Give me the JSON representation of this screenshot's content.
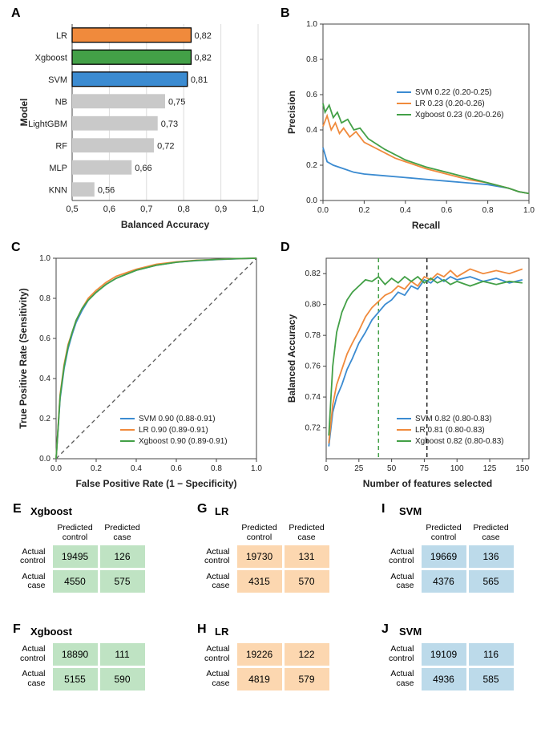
{
  "colors": {
    "svm": "#3b8bd1",
    "lr": "#f08a3c",
    "xgb": "#43a047",
    "grey_bar": "#c9c9c9",
    "grid": "#dcdcdc",
    "axis": "#444444",
    "text": "#222222",
    "cm_green": "#bfe3c3",
    "cm_orange": "#fcd7b0",
    "cm_blue": "#bcdaea"
  },
  "panelA": {
    "label": "A",
    "ylabel": "Model",
    "xlabel": "Balanced Accuracy",
    "xmin": 0.5,
    "xmax": 1.0,
    "xtick_step": 0.1,
    "bars": [
      {
        "name": "LR",
        "value": 0.82,
        "color": "#f08a3c",
        "stroke": true,
        "value_label": "0,82"
      },
      {
        "name": "Xgboost",
        "value": 0.82,
        "color": "#43a047",
        "stroke": true,
        "value_label": "0,82"
      },
      {
        "name": "SVM",
        "value": 0.81,
        "color": "#3b8bd1",
        "stroke": true,
        "value_label": "0,81"
      },
      {
        "name": "NB",
        "value": 0.75,
        "color": "#c9c9c9",
        "stroke": false,
        "value_label": "0,75"
      },
      {
        "name": "LightGBM",
        "value": 0.73,
        "color": "#c9c9c9",
        "stroke": false,
        "value_label": "0,73"
      },
      {
        "name": "RF",
        "value": 0.72,
        "color": "#c9c9c9",
        "stroke": false,
        "value_label": "0,72"
      },
      {
        "name": "MLP",
        "value": 0.66,
        "color": "#c9c9c9",
        "stroke": false,
        "value_label": "0,66"
      },
      {
        "name": "KNN",
        "value": 0.56,
        "color": "#c9c9c9",
        "stroke": false,
        "value_label": "0,56"
      }
    ]
  },
  "panelB": {
    "label": "B",
    "xlabel": "Recall",
    "ylabel": "Precision",
    "xlim": [
      0,
      1
    ],
    "ylim": [
      0,
      1
    ],
    "xticks": [
      0.0,
      0.2,
      0.4,
      0.6,
      0.8,
      1.0
    ],
    "yticks": [
      0.0,
      0.2,
      0.4,
      0.6,
      0.8,
      1.0
    ],
    "legend": [
      {
        "label": "SVM 0.22 (0.20-0.25)",
        "color": "#3b8bd1"
      },
      {
        "label": "LR 0.23 (0.20-0.26)",
        "color": "#f08a3c"
      },
      {
        "label": "Xgboost 0.23 (0.20-0.26)",
        "color": "#43a047"
      }
    ],
    "series": {
      "svm": [
        [
          0.0,
          0.3
        ],
        [
          0.02,
          0.22
        ],
        [
          0.05,
          0.2
        ],
        [
          0.1,
          0.18
        ],
        [
          0.15,
          0.16
        ],
        [
          0.2,
          0.15
        ],
        [
          0.3,
          0.14
        ],
        [
          0.4,
          0.13
        ],
        [
          0.5,
          0.12
        ],
        [
          0.6,
          0.11
        ],
        [
          0.7,
          0.1
        ],
        [
          0.8,
          0.09
        ],
        [
          0.9,
          0.07
        ],
        [
          0.95,
          0.05
        ],
        [
          1.0,
          0.04
        ]
      ],
      "lr": [
        [
          0.0,
          0.42
        ],
        [
          0.02,
          0.48
        ],
        [
          0.04,
          0.4
        ],
        [
          0.06,
          0.44
        ],
        [
          0.08,
          0.38
        ],
        [
          0.1,
          0.41
        ],
        [
          0.13,
          0.36
        ],
        [
          0.16,
          0.39
        ],
        [
          0.2,
          0.33
        ],
        [
          0.25,
          0.3
        ],
        [
          0.3,
          0.27
        ],
        [
          0.35,
          0.24
        ],
        [
          0.4,
          0.22
        ],
        [
          0.5,
          0.18
        ],
        [
          0.6,
          0.15
        ],
        [
          0.7,
          0.12
        ],
        [
          0.8,
          0.1
        ],
        [
          0.9,
          0.07
        ],
        [
          0.95,
          0.05
        ],
        [
          1.0,
          0.04
        ]
      ],
      "xgb": [
        [
          0.0,
          0.55
        ],
        [
          0.01,
          0.5
        ],
        [
          0.03,
          0.54
        ],
        [
          0.05,
          0.47
        ],
        [
          0.07,
          0.5
        ],
        [
          0.09,
          0.44
        ],
        [
          0.12,
          0.46
        ],
        [
          0.15,
          0.4
        ],
        [
          0.18,
          0.41
        ],
        [
          0.22,
          0.35
        ],
        [
          0.26,
          0.32
        ],
        [
          0.3,
          0.29
        ],
        [
          0.35,
          0.26
        ],
        [
          0.4,
          0.23
        ],
        [
          0.5,
          0.19
        ],
        [
          0.6,
          0.16
        ],
        [
          0.7,
          0.13
        ],
        [
          0.8,
          0.1
        ],
        [
          0.9,
          0.07
        ],
        [
          0.95,
          0.05
        ],
        [
          1.0,
          0.04
        ]
      ]
    }
  },
  "panelC": {
    "label": "C",
    "xlabel": "False Positive Rate (1 − Specificity)",
    "ylabel": "True Positive Rate (Sensitivity)",
    "xlim": [
      0,
      1
    ],
    "ylim": [
      0,
      1
    ],
    "xticks": [
      0.0,
      0.2,
      0.4,
      0.6,
      0.8,
      1.0
    ],
    "yticks": [
      0.0,
      0.2,
      0.4,
      0.6,
      0.8,
      1.0
    ],
    "legend": [
      {
        "label": "SVM 0.90 (0.88-0.91)",
        "color": "#3b8bd1"
      },
      {
        "label": "LR 0.90 (0.89-0.91)",
        "color": "#f08a3c"
      },
      {
        "label": "Xgboost 0.90 (0.89-0.91)",
        "color": "#43a047"
      }
    ],
    "series": {
      "svm": [
        [
          0,
          0
        ],
        [
          0.02,
          0.3
        ],
        [
          0.04,
          0.45
        ],
        [
          0.06,
          0.55
        ],
        [
          0.08,
          0.62
        ],
        [
          0.1,
          0.68
        ],
        [
          0.13,
          0.74
        ],
        [
          0.16,
          0.79
        ],
        [
          0.2,
          0.83
        ],
        [
          0.25,
          0.87
        ],
        [
          0.3,
          0.9
        ],
        [
          0.4,
          0.94
        ],
        [
          0.5,
          0.965
        ],
        [
          0.6,
          0.98
        ],
        [
          0.7,
          0.988
        ],
        [
          0.8,
          0.993
        ],
        [
          0.9,
          0.997
        ],
        [
          1.0,
          1.0
        ]
      ],
      "lr": [
        [
          0,
          0
        ],
        [
          0.02,
          0.32
        ],
        [
          0.04,
          0.47
        ],
        [
          0.06,
          0.57
        ],
        [
          0.08,
          0.63
        ],
        [
          0.1,
          0.69
        ],
        [
          0.13,
          0.75
        ],
        [
          0.16,
          0.8
        ],
        [
          0.2,
          0.84
        ],
        [
          0.25,
          0.88
        ],
        [
          0.3,
          0.91
        ],
        [
          0.4,
          0.945
        ],
        [
          0.5,
          0.97
        ],
        [
          0.6,
          0.982
        ],
        [
          0.7,
          0.99
        ],
        [
          0.8,
          0.994
        ],
        [
          0.9,
          0.998
        ],
        [
          1.0,
          1.0
        ]
      ],
      "xgb": [
        [
          0,
          0
        ],
        [
          0.02,
          0.31
        ],
        [
          0.04,
          0.46
        ],
        [
          0.06,
          0.56
        ],
        [
          0.08,
          0.63
        ],
        [
          0.1,
          0.69
        ],
        [
          0.13,
          0.75
        ],
        [
          0.16,
          0.79
        ],
        [
          0.2,
          0.83
        ],
        [
          0.25,
          0.87
        ],
        [
          0.3,
          0.9
        ],
        [
          0.4,
          0.94
        ],
        [
          0.5,
          0.965
        ],
        [
          0.6,
          0.98
        ],
        [
          0.7,
          0.989
        ],
        [
          0.8,
          0.994
        ],
        [
          0.9,
          0.998
        ],
        [
          1.0,
          1.0
        ]
      ]
    }
  },
  "panelD": {
    "label": "D",
    "xlabel": "Number of features selected",
    "ylabel": "Balanced Accuracy",
    "xlim": [
      0,
      155
    ],
    "ylim": [
      0.7,
      0.83
    ],
    "xticks": [
      0,
      25,
      50,
      75,
      100,
      125,
      150
    ],
    "yticks": [
      0.72,
      0.74,
      0.76,
      0.78,
      0.8,
      0.82
    ],
    "vlines": [
      {
        "x": 40,
        "color": "#43a047"
      },
      {
        "x": 77,
        "color": "#222222"
      }
    ],
    "legend": [
      {
        "label": "SVM 0.82 (0.80-0.83)",
        "color": "#3b8bd1"
      },
      {
        "label": "LR 0.81 (0.80-0.83)",
        "color": "#f08a3c"
      },
      {
        "label": "Xgboost 0.82 (0.80-0.83)",
        "color": "#43a047"
      }
    ],
    "series": {
      "svm": [
        [
          2,
          0.708
        ],
        [
          5,
          0.73
        ],
        [
          8,
          0.74
        ],
        [
          12,
          0.748
        ],
        [
          16,
          0.758
        ],
        [
          20,
          0.765
        ],
        [
          25,
          0.775
        ],
        [
          30,
          0.782
        ],
        [
          35,
          0.79
        ],
        [
          40,
          0.795
        ],
        [
          45,
          0.8
        ],
        [
          50,
          0.803
        ],
        [
          55,
          0.808
        ],
        [
          60,
          0.806
        ],
        [
          65,
          0.812
        ],
        [
          70,
          0.81
        ],
        [
          75,
          0.816
        ],
        [
          80,
          0.814
        ],
        [
          85,
          0.818
        ],
        [
          90,
          0.815
        ],
        [
          95,
          0.818
        ],
        [
          100,
          0.816
        ],
        [
          110,
          0.818
        ],
        [
          120,
          0.815
        ],
        [
          130,
          0.817
        ],
        [
          140,
          0.814
        ],
        [
          150,
          0.816
        ]
      ],
      "lr": [
        [
          2,
          0.71
        ],
        [
          5,
          0.735
        ],
        [
          8,
          0.748
        ],
        [
          12,
          0.758
        ],
        [
          16,
          0.768
        ],
        [
          20,
          0.775
        ],
        [
          25,
          0.783
        ],
        [
          30,
          0.792
        ],
        [
          35,
          0.798
        ],
        [
          40,
          0.802
        ],
        [
          45,
          0.806
        ],
        [
          50,
          0.808
        ],
        [
          55,
          0.812
        ],
        [
          60,
          0.81
        ],
        [
          65,
          0.815
        ],
        [
          70,
          0.812
        ],
        [
          75,
          0.818
        ],
        [
          80,
          0.816
        ],
        [
          85,
          0.82
        ],
        [
          90,
          0.818
        ],
        [
          95,
          0.822
        ],
        [
          100,
          0.818
        ],
        [
          110,
          0.823
        ],
        [
          120,
          0.82
        ],
        [
          130,
          0.822
        ],
        [
          140,
          0.82
        ],
        [
          150,
          0.823
        ]
      ],
      "xgb": [
        [
          2,
          0.715
        ],
        [
          5,
          0.76
        ],
        [
          8,
          0.782
        ],
        [
          12,
          0.795
        ],
        [
          16,
          0.803
        ],
        [
          20,
          0.808
        ],
        [
          25,
          0.812
        ],
        [
          30,
          0.816
        ],
        [
          35,
          0.815
        ],
        [
          40,
          0.818
        ],
        [
          45,
          0.813
        ],
        [
          50,
          0.817
        ],
        [
          55,
          0.814
        ],
        [
          60,
          0.818
        ],
        [
          65,
          0.815
        ],
        [
          70,
          0.818
        ],
        [
          75,
          0.814
        ],
        [
          80,
          0.817
        ],
        [
          85,
          0.814
        ],
        [
          90,
          0.816
        ],
        [
          95,
          0.813
        ],
        [
          100,
          0.815
        ],
        [
          110,
          0.812
        ],
        [
          120,
          0.815
        ],
        [
          130,
          0.813
        ],
        [
          140,
          0.815
        ],
        [
          150,
          0.814
        ]
      ]
    }
  },
  "cm": {
    "col_headers": [
      "Predicted\ncontrol",
      "Predicted\ncase"
    ],
    "row_headers": [
      "Actual\ncontrol",
      "Actual\ncase"
    ],
    "E": {
      "label": "E",
      "title": "Xgboost",
      "color": "g",
      "rows": [
        [
          19495,
          126
        ],
        [
          4550,
          575
        ]
      ]
    },
    "F": {
      "label": "F",
      "title": "Xgboost",
      "color": "g",
      "rows": [
        [
          18890,
          111
        ],
        [
          5155,
          590
        ]
      ]
    },
    "G": {
      "label": "G",
      "title": "LR",
      "color": "o",
      "rows": [
        [
          19730,
          131
        ],
        [
          4315,
          570
        ]
      ]
    },
    "H": {
      "label": "H",
      "title": "LR",
      "color": "o",
      "rows": [
        [
          19226,
          122
        ],
        [
          4819,
          579
        ]
      ]
    },
    "I": {
      "label": "I",
      "title": "SVM",
      "color": "b",
      "rows": [
        [
          19669,
          136
        ],
        [
          4376,
          565
        ]
      ]
    },
    "J": {
      "label": "J",
      "title": "SVM",
      "color": "b",
      "rows": [
        [
          19109,
          116
        ],
        [
          4936,
          585
        ]
      ]
    }
  }
}
